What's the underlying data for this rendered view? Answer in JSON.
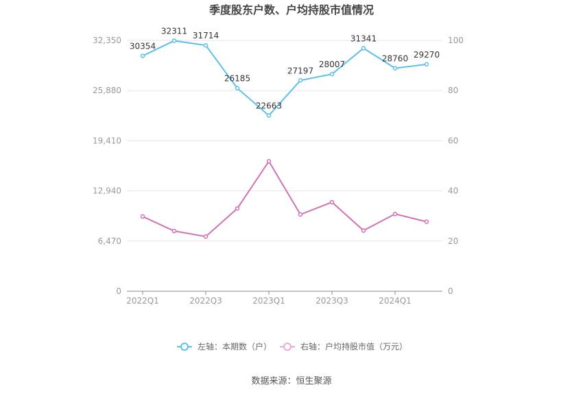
{
  "chart_data": {
    "type": "line",
    "title": "季度股东户数、户均持股市值情况",
    "x": [
      "2022Q1",
      "2022Q2",
      "2022Q3",
      "2022Q4",
      "2023Q1",
      "2023Q2",
      "2023Q3",
      "2023Q4",
      "2024Q1",
      "2024Q2"
    ],
    "x_tick_labels": [
      "2022Q1",
      "2022Q3",
      "2023Q1",
      "2023Q3",
      "2024Q1"
    ],
    "y_left": {
      "ylim": [
        0,
        32350
      ],
      "ticks": [
        "0",
        "6,470",
        "12,940",
        "19,410",
        "25,880",
        "32,350"
      ]
    },
    "y_right": {
      "ylim": [
        0,
        100
      ],
      "ticks": [
        "0",
        "20",
        "40",
        "60",
        "80",
        "100"
      ]
    },
    "series": [
      {
        "name": "左轴：本期数（户）",
        "axis": "left",
        "color": "#5bc0eb",
        "values": [
          30354,
          32311,
          31714,
          26185,
          22663,
          27197,
          28007,
          31341,
          28760,
          29270
        ],
        "labels": [
          "30354",
          "32311",
          "31714",
          "26185",
          "22663",
          "27197",
          "28007",
          "31341",
          "28760",
          "29270"
        ]
      },
      {
        "name": "右轴：户均持股市值（万元）",
        "axis": "right",
        "color": "#d46fb4",
        "values": [
          29.8,
          24.0,
          21.8,
          33.0,
          51.8,
          30.6,
          35.5,
          24.2,
          30.8,
          27.7
        ]
      }
    ],
    "grid": true,
    "legend_position": "bottom-center"
  },
  "footer": {
    "source": "数据来源：恒生聚源"
  }
}
